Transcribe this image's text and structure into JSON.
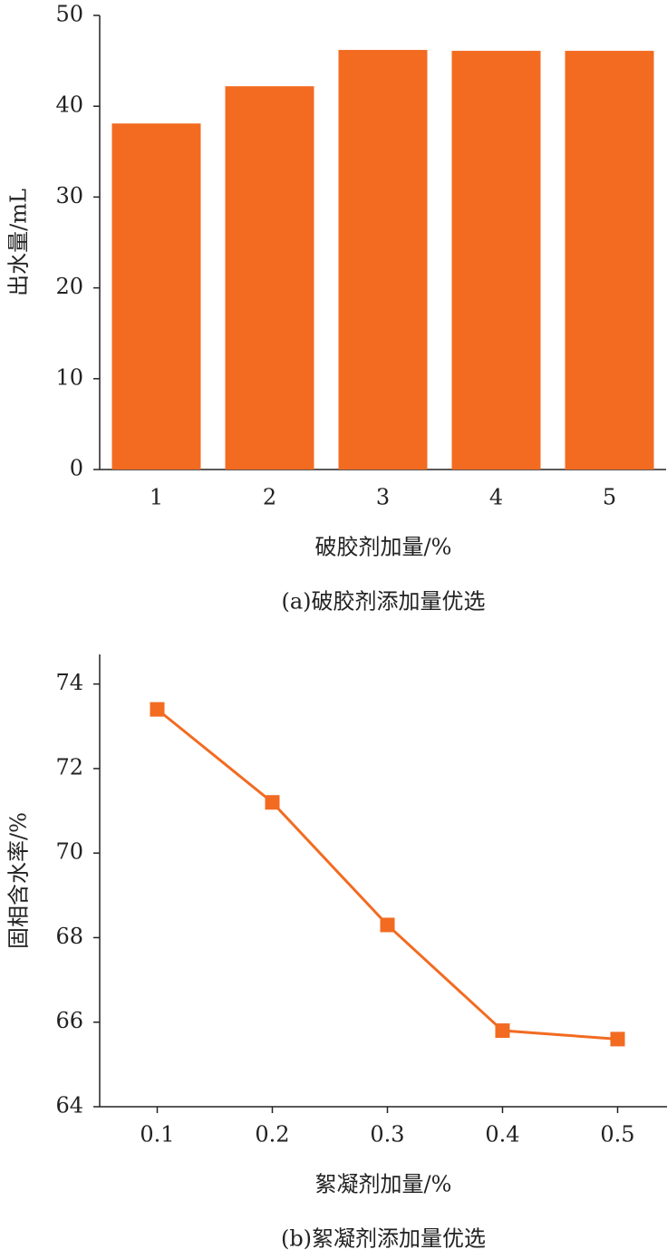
{
  "chart_data": [
    {
      "type": "bar",
      "caption": "(a)破胶剂添加量优选",
      "x_label": "破胶剂加量/%",
      "y_label": "出水量/mL",
      "categories": [
        "1",
        "2",
        "3",
        "4",
        "5"
      ],
      "values": [
        38.1,
        42.2,
        46.2,
        46.1,
        46.1
      ],
      "color": "#f26b21",
      "ylim": [
        0,
        50
      ],
      "yticks": [
        0,
        10,
        20,
        30,
        40,
        50
      ]
    },
    {
      "type": "line",
      "caption": "(b)絮凝剂添加量优选",
      "x_label": "絮凝剂加量/%",
      "y_label": "固相含水率/%",
      "categories": [
        "0.1",
        "0.2",
        "0.3",
        "0.4",
        "0.5"
      ],
      "values": [
        73.4,
        71.2,
        68.3,
        65.8,
        65.6
      ],
      "color": "#f26b21",
      "ylim": [
        64,
        74.7
      ],
      "yticks": [
        64,
        66,
        68,
        70,
        72,
        74
      ]
    }
  ]
}
